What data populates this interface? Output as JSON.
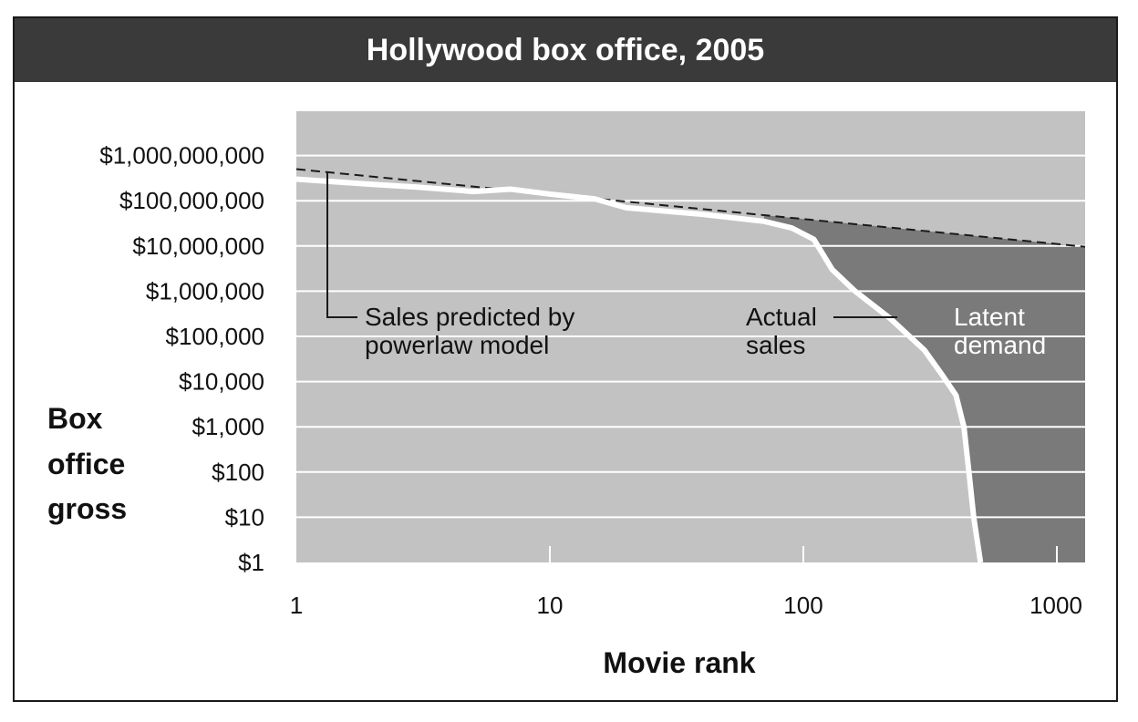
{
  "chart_data": {
    "type": "area",
    "title": "Hollywood box office, 2005",
    "xlabel": "Movie rank",
    "ylabel_lines": [
      "Box",
      "office",
      "gross"
    ],
    "x_scale": "log",
    "y_scale": "log",
    "xlim": [
      1,
      1200
    ],
    "ylim": [
      1,
      10000000000
    ],
    "x_ticks": [
      {
        "value": 1,
        "label": "1"
      },
      {
        "value": 10,
        "label": "10"
      },
      {
        "value": 100,
        "label": "100"
      },
      {
        "value": 1000,
        "label": "1000"
      }
    ],
    "y_ticks": [
      {
        "value": 1,
        "label": "$1"
      },
      {
        "value": 10,
        "label": "$10"
      },
      {
        "value": 100,
        "label": "$100"
      },
      {
        "value": 1000,
        "label": "$1,000"
      },
      {
        "value": 10000,
        "label": "$10,000"
      },
      {
        "value": 100000,
        "label": "$100,000"
      },
      {
        "value": 1000000,
        "label": "$1,000,000"
      },
      {
        "value": 10000000,
        "label": "$10,000,000"
      },
      {
        "value": 100000000,
        "label": "$100,000,000"
      },
      {
        "value": 1000000000,
        "label": "$1,000,000,000"
      }
    ],
    "series": [
      {
        "name": "Sales predicted by powerlaw model",
        "style": "dashed",
        "points": [
          [
            1,
            500000000
          ],
          [
            1200,
            10000000
          ]
        ]
      },
      {
        "name": "Actual sales",
        "style": "solid-white",
        "points": [
          [
            1,
            300000000
          ],
          [
            2,
            230000000
          ],
          [
            3,
            200000000
          ],
          [
            5,
            160000000
          ],
          [
            7,
            180000000
          ],
          [
            10,
            140000000
          ],
          [
            15,
            110000000
          ],
          [
            20,
            70000000
          ],
          [
            40,
            50000000
          ],
          [
            70,
            35000000
          ],
          [
            90,
            25000000
          ],
          [
            110,
            14000000
          ],
          [
            130,
            3000000
          ],
          [
            160,
            1000000
          ],
          [
            220,
            250000
          ],
          [
            300,
            50000
          ],
          [
            350,
            15000
          ],
          [
            400,
            5000
          ],
          [
            430,
            1000
          ],
          [
            450,
            100
          ],
          [
            470,
            10
          ],
          [
            500,
            1
          ]
        ]
      }
    ],
    "annotations": [
      {
        "lines": [
          "Sales predicted by",
          "powerlaw model"
        ]
      },
      {
        "lines": [
          "Actual",
          "sales"
        ]
      },
      {
        "lines": [
          "Latent",
          "demand"
        ]
      }
    ]
  }
}
